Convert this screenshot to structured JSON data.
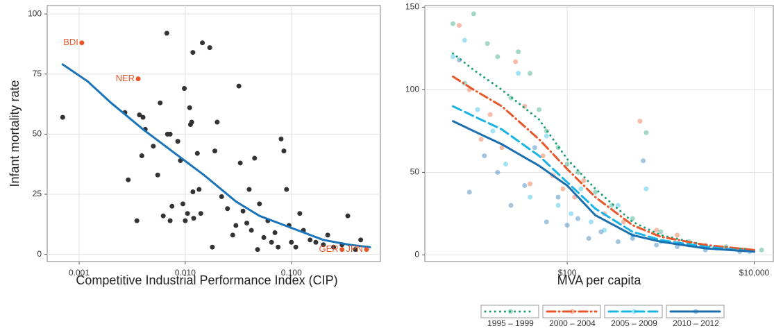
{
  "chart_data": [
    {
      "type": "scatter",
      "log_x": true,
      "grid": true,
      "xlabel": "Competitive Industrial Performance Index (CIP)",
      "ylabel": "Infant mortality rate",
      "xlim": [
        0.0005,
        0.69
      ],
      "ylim": [
        -3,
        103.5
      ],
      "xticks": [
        {
          "value": 0.001,
          "label": "0.001"
        },
        {
          "value": 0.01,
          "label": "0.010"
        },
        {
          "value": 0.1,
          "label": "0.100"
        }
      ],
      "yticks": [
        0,
        25,
        50,
        75,
        100
      ],
      "points": {
        "color": "#333333",
        "x": [
          0.0007,
          0.0027,
          0.0029,
          0.0035,
          0.0037,
          0.0039,
          0.004,
          0.0042,
          0.005,
          0.0055,
          0.0058,
          0.0062,
          0.0067,
          0.0068,
          0.0072,
          0.0072,
          0.0075,
          0.0085,
          0.009,
          0.0095,
          0.0098,
          0.01,
          0.0105,
          0.011,
          0.0112,
          0.0115,
          0.0118,
          0.0118,
          0.012,
          0.013,
          0.0135,
          0.014,
          0.0145,
          0.017,
          0.018,
          0.019,
          0.02,
          0.022,
          0.025,
          0.028,
          0.03,
          0.032,
          0.033,
          0.035,
          0.038,
          0.04,
          0.042,
          0.045,
          0.048,
          0.05,
          0.055,
          0.06,
          0.065,
          0.07,
          0.075,
          0.08,
          0.085,
          0.09,
          0.095,
          0.1,
          0.11,
          0.12,
          0.13,
          0.15,
          0.17,
          0.2,
          0.22,
          0.25,
          0.3,
          0.34,
          0.4,
          0.45
        ],
        "y": [
          57,
          59,
          31,
          14,
          58,
          41,
          57,
          52,
          45,
          33,
          63,
          16,
          92,
          50,
          50,
          14,
          20,
          47,
          39,
          21,
          69,
          14,
          17,
          61,
          54,
          55,
          84,
          26,
          15,
          42,
          27,
          17,
          88,
          86,
          3,
          43,
          55,
          24,
          19,
          8,
          12,
          70,
          38,
          18,
          13,
          27,
          10,
          40,
          2,
          21,
          7,
          14,
          5,
          9,
          3,
          48,
          43,
          27,
          12,
          5,
          3,
          17,
          10,
          6,
          5,
          4,
          8,
          3,
          4,
          16,
          2,
          6
        ]
      },
      "trend": {
        "color": "#1a74ba",
        "x": [
          0.0007,
          0.0012,
          0.002,
          0.004,
          0.008,
          0.015,
          0.03,
          0.05,
          0.1,
          0.2,
          0.35,
          0.55
        ],
        "y": [
          79,
          72,
          63,
          52,
          42,
          33,
          22,
          16,
          11,
          6,
          4,
          3
        ]
      },
      "annotation_color": "#e8572a",
      "annotations": [
        {
          "label": "BDI",
          "x": 0.00106,
          "y": 88
        },
        {
          "label": "NER",
          "x": 0.0036,
          "y": 73
        },
        {
          "label": "GER",
          "x": 0.3,
          "y": 2
        },
        {
          "label": "JPN",
          "x": 0.51,
          "y": 2
        }
      ]
    },
    {
      "type": "scatter",
      "log_x": true,
      "grid": true,
      "legend": "bottom",
      "xlabel": "MVA per capita",
      "xlim": [
        3,
        16000
      ],
      "ylim": [
        -4,
        151
      ],
      "xticks": [
        {
          "value": 100,
          "label": "$100"
        },
        {
          "value": 10000,
          "label": "$10,000"
        }
      ],
      "yticks": [
        0,
        50,
        100,
        150
      ],
      "series": [
        {
          "name": "1995 – 1999",
          "color": "#1a9e77",
          "dash": "dotted",
          "x": [
            6,
            8,
            10,
            14,
            18,
            25,
            30,
            40,
            50,
            60,
            80,
            100,
            130,
            200,
            300,
            500,
            700,
            1000,
            2000,
            5000,
            12000
          ],
          "y": [
            140,
            104,
            146,
            128,
            120,
            95,
            123,
            110,
            88,
            75,
            65,
            55,
            50,
            38,
            30,
            22,
            74,
            14,
            8,
            5,
            3
          ],
          "line_x": [
            6,
            10,
            20,
            50,
            100,
            200,
            500,
            1000,
            3000,
            10000
          ],
          "line_y": [
            122,
            112,
            100,
            82,
            58,
            40,
            20,
            12,
            6,
            3
          ]
        },
        {
          "name": "2000 – 2004",
          "color": "#e8572a",
          "dash": "dotdash",
          "x": [
            7,
            9,
            12,
            15,
            20,
            28,
            35,
            40,
            55,
            70,
            90,
            120,
            150,
            250,
            400,
            600,
            900,
            1500,
            3000,
            8000
          ],
          "y": [
            139,
            100,
            70,
            85,
            65,
            117,
            90,
            43,
            60,
            48,
            40,
            35,
            45,
            25,
            20,
            81,
            15,
            12,
            6,
            3
          ],
          "line_x": [
            6,
            10,
            20,
            50,
            100,
            200,
            500,
            1000,
            3000,
            10000
          ],
          "line_y": [
            108,
            100,
            90,
            70,
            52,
            35,
            18,
            11,
            6,
            3
          ]
        },
        {
          "name": "2005 – 2009",
          "color": "#1ab3e6",
          "dash": "dashed",
          "x": [
            6,
            8,
            11,
            16,
            22,
            30,
            40,
            60,
            80,
            110,
            140,
            180,
            250,
            350,
            500,
            700,
            1000,
            2000,
            4000,
            9000
          ],
          "y": [
            120,
            130,
            88,
            75,
            55,
            110,
            35,
            72,
            30,
            25,
            40,
            20,
            15,
            30,
            12,
            40,
            8,
            6,
            4,
            2
          ],
          "line_x": [
            6,
            10,
            20,
            50,
            100,
            200,
            500,
            1000,
            3000,
            10000
          ],
          "line_y": [
            90,
            84,
            76,
            60,
            44,
            28,
            14,
            9,
            5,
            2
          ]
        },
        {
          "name": "2010 – 2012",
          "color": "#1a6fb0",
          "dash": "solid",
          "x": [
            7,
            9,
            13,
            18,
            25,
            35,
            45,
            60,
            80,
            100,
            130,
            170,
            230,
            350,
            500,
            650,
            900,
            1500,
            3000,
            7000
          ],
          "y": [
            118,
            38,
            60,
            50,
            30,
            42,
            65,
            20,
            35,
            18,
            22,
            10,
            14,
            8,
            10,
            57,
            6,
            5,
            3,
            2
          ],
          "line_x": [
            6,
            10,
            20,
            50,
            100,
            200,
            500,
            1000,
            3000,
            10000
          ],
          "line_y": [
            81,
            75,
            67,
            54,
            42,
            24,
            12,
            8,
            4,
            2
          ]
        }
      ]
    }
  ]
}
